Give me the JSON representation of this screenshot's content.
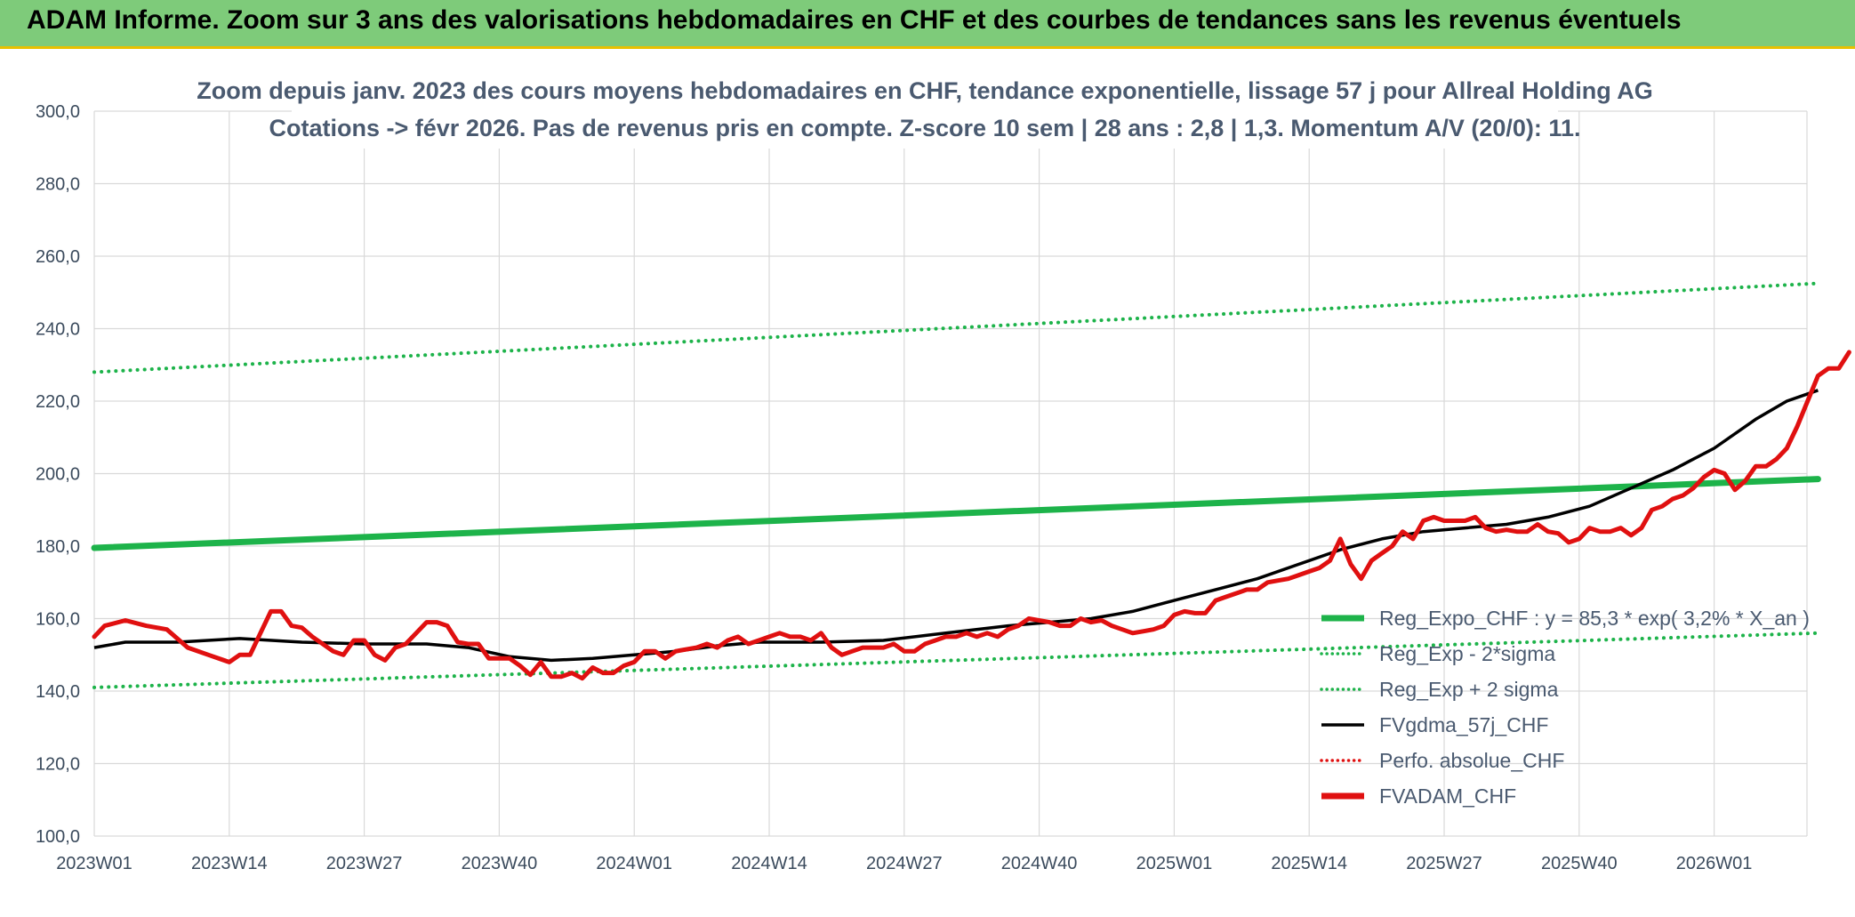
{
  "header": {
    "title": "ADAM Informe. Zoom sur 3 ans des valorisations hebdomadaires en CHF et des courbes de tendances sans les revenus éventuels"
  },
  "colors": {
    "header_bg": "#7ecb7a",
    "reg_expo": "#1db34a",
    "sigma_band": "#1db34a",
    "fvgdma": "#000000",
    "perfo": "#e01010",
    "fvadam": "#e01010"
  },
  "chart_data": {
    "type": "line",
    "title": "Zoom depuis janv. 2023 des cours moyens hebdomadaires en CHF, tendance exponentielle, lissage 57 j pour Allreal Holding AG",
    "subtitle": "Cotations -> févr 2026. Pas de revenus pris en compte. Z-score 10 sem | 28 ans : 2,8 | 1,3. Momentum A/V (20/0): 11.",
    "x_ticks": [
      "2023W01",
      "2023W14",
      "2023W27",
      "2023W40",
      "2024W01",
      "2024W14",
      "2024W27",
      "2024W40",
      "2025W01",
      "2025W14",
      "2025W27",
      "2025W40",
      "2026W01"
    ],
    "y_ticks": [
      "100,0",
      "120,0",
      "140,0",
      "160,0",
      "180,0",
      "200,0",
      "220,0",
      "240,0",
      "260,0",
      "280,0",
      "300,0"
    ],
    "ylim": [
      100,
      300
    ],
    "weeks_span": [
      0,
      166
    ],
    "grid": true,
    "legend_position": "right",
    "legend": [
      {
        "name": "Reg_Expo_CHF : y = 85,3 * exp( 3,2% *  X_an )",
        "style": "thick-solid",
        "color": "#1db34a"
      },
      {
        "name": "Reg_Exp - 2*sigma",
        "style": "dotted",
        "color": "#1db34a"
      },
      {
        "name": "Reg_Exp + 2 sigma",
        "style": "dotted",
        "color": "#1db34a"
      },
      {
        "name": "FVgdma_57j_CHF",
        "style": "solid",
        "color": "#000000"
      },
      {
        "name": "Perfo. absolue_CHF",
        "style": "dotted",
        "color": "#e01010"
      },
      {
        "name": "FVADAM_CHF",
        "style": "thick-solid",
        "color": "#e01010"
      }
    ],
    "series": [
      {
        "name": "Reg_Expo_CHF : y = 85,3 * exp( 3,2% *  X_an )",
        "key": "reg_expo",
        "points": [
          [
            0,
            179.5
          ],
          [
            166,
            198.5
          ]
        ]
      },
      {
        "name": "Reg_Exp - 2*sigma",
        "key": "reg_minus",
        "points": [
          [
            0,
            141
          ],
          [
            166,
            156
          ]
        ]
      },
      {
        "name": "Reg_Exp + 2 sigma",
        "key": "reg_plus",
        "points": [
          [
            0,
            228
          ],
          [
            166,
            252.5
          ]
        ]
      },
      {
        "name": "FVgdma_57j_CHF",
        "key": "fvgdma",
        "points": [
          [
            0,
            152
          ],
          [
            3,
            153.5
          ],
          [
            8,
            153.5
          ],
          [
            14,
            154.5
          ],
          [
            20,
            153.5
          ],
          [
            26,
            153
          ],
          [
            32,
            153
          ],
          [
            36,
            152
          ],
          [
            40,
            149.5
          ],
          [
            44,
            148.5
          ],
          [
            48,
            149
          ],
          [
            52,
            150
          ],
          [
            56,
            151
          ],
          [
            60,
            152.5
          ],
          [
            64,
            153.5
          ],
          [
            70,
            153.5
          ],
          [
            76,
            154
          ],
          [
            82,
            156
          ],
          [
            88,
            158
          ],
          [
            92,
            159
          ],
          [
            96,
            160
          ],
          [
            100,
            162
          ],
          [
            104,
            165
          ],
          [
            108,
            168
          ],
          [
            112,
            171
          ],
          [
            116,
            175
          ],
          [
            120,
            179
          ],
          [
            124,
            182
          ],
          [
            128,
            184
          ],
          [
            132,
            185
          ],
          [
            136,
            186
          ],
          [
            140,
            188
          ],
          [
            144,
            191
          ],
          [
            148,
            196
          ],
          [
            152,
            201
          ],
          [
            156,
            207
          ],
          [
            160,
            215
          ],
          [
            163,
            220
          ],
          [
            166,
            223
          ]
        ]
      },
      {
        "name": "FVADAM_CHF",
        "key": "fvadam",
        "points": [
          [
            0,
            155
          ],
          [
            1,
            158
          ],
          [
            3,
            159.5
          ],
          [
            5,
            158
          ],
          [
            7,
            157
          ],
          [
            9,
            152
          ],
          [
            11,
            150
          ],
          [
            13,
            148
          ],
          [
            14,
            150
          ],
          [
            15,
            150
          ],
          [
            17,
            162
          ],
          [
            18,
            162
          ],
          [
            19,
            158
          ],
          [
            20,
            157.5
          ],
          [
            21,
            155
          ],
          [
            22,
            153
          ],
          [
            23,
            151
          ],
          [
            24,
            150
          ],
          [
            25,
            154
          ],
          [
            26,
            154
          ],
          [
            27,
            150
          ],
          [
            28,
            148.5
          ],
          [
            29,
            152
          ],
          [
            30,
            153
          ],
          [
            31,
            156
          ],
          [
            32,
            159
          ],
          [
            33,
            159
          ],
          [
            34,
            158
          ],
          [
            35,
            153.5
          ],
          [
            36,
            153
          ],
          [
            37,
            153
          ],
          [
            38,
            149
          ],
          [
            40,
            149
          ],
          [
            41,
            147
          ],
          [
            42,
            144.5
          ],
          [
            43,
            148
          ],
          [
            44,
            144
          ],
          [
            45,
            144
          ],
          [
            46,
            145
          ],
          [
            47,
            143.5
          ],
          [
            48,
            146.5
          ],
          [
            49,
            145
          ],
          [
            50,
            145
          ],
          [
            51,
            147
          ],
          [
            52,
            148
          ],
          [
            53,
            151
          ],
          [
            54,
            151
          ],
          [
            55,
            149
          ],
          [
            56,
            151
          ],
          [
            58,
            152
          ],
          [
            59,
            153
          ],
          [
            60,
            152
          ],
          [
            61,
            154
          ],
          [
            62,
            155
          ],
          [
            63,
            153
          ],
          [
            64,
            154
          ],
          [
            65,
            155
          ],
          [
            66,
            156
          ],
          [
            67,
            155
          ],
          [
            68,
            155
          ],
          [
            69,
            154
          ],
          [
            70,
            156
          ],
          [
            71,
            152
          ],
          [
            72,
            150
          ],
          [
            73,
            151
          ],
          [
            74,
            152
          ],
          [
            76,
            152
          ],
          [
            77,
            153
          ],
          [
            78,
            151
          ],
          [
            79,
            151
          ],
          [
            80,
            153
          ],
          [
            81,
            154
          ],
          [
            82,
            155
          ],
          [
            83,
            155
          ],
          [
            84,
            156
          ],
          [
            85,
            155
          ],
          [
            86,
            156
          ],
          [
            87,
            155
          ],
          [
            88,
            157
          ],
          [
            89,
            158
          ],
          [
            90,
            160
          ],
          [
            92,
            159
          ],
          [
            93,
            158
          ],
          [
            94,
            158
          ],
          [
            95,
            160
          ],
          [
            96,
            159
          ],
          [
            97,
            159.5
          ],
          [
            98,
            158
          ],
          [
            99,
            157
          ],
          [
            100,
            156
          ],
          [
            101,
            156.5
          ],
          [
            102,
            157
          ],
          [
            103,
            158
          ],
          [
            104,
            161
          ],
          [
            105,
            162
          ],
          [
            106,
            161.5
          ],
          [
            107,
            161.5
          ],
          [
            108,
            165
          ],
          [
            109,
            166
          ],
          [
            110,
            167
          ],
          [
            111,
            168
          ],
          [
            112,
            168
          ],
          [
            113,
            170
          ],
          [
            114,
            170.5
          ],
          [
            115,
            171
          ],
          [
            116,
            172
          ],
          [
            117,
            173
          ],
          [
            118,
            174
          ],
          [
            119,
            176
          ],
          [
            120,
            182
          ],
          [
            121,
            175
          ],
          [
            122,
            171
          ],
          [
            123,
            176
          ],
          [
            124,
            178
          ],
          [
            125,
            180
          ],
          [
            126,
            184
          ],
          [
            127,
            182
          ],
          [
            128,
            187
          ],
          [
            129,
            188
          ],
          [
            130,
            187
          ],
          [
            131,
            187
          ],
          [
            132,
            187
          ],
          [
            133,
            188
          ],
          [
            134,
            185
          ],
          [
            135,
            184
          ],
          [
            136,
            184.5
          ],
          [
            137,
            184
          ],
          [
            138,
            184
          ],
          [
            139,
            186
          ],
          [
            140,
            184
          ],
          [
            141,
            183.5
          ],
          [
            142,
            181
          ],
          [
            143,
            182
          ],
          [
            144,
            185
          ],
          [
            145,
            184
          ],
          [
            146,
            184
          ],
          [
            147,
            185
          ],
          [
            148,
            183
          ],
          [
            149,
            185
          ],
          [
            150,
            190
          ],
          [
            151,
            191
          ],
          [
            152,
            193
          ],
          [
            153,
            194
          ],
          [
            154,
            196
          ],
          [
            155,
            199
          ],
          [
            156,
            201
          ],
          [
            157,
            200
          ],
          [
            158,
            195.5
          ],
          [
            159,
            198
          ],
          [
            160,
            202
          ],
          [
            161,
            202
          ],
          [
            162,
            204
          ],
          [
            163,
            207
          ],
          [
            164,
            213
          ],
          [
            165,
            220
          ],
          [
            166,
            227
          ],
          [
            167,
            229
          ],
          [
            168,
            229
          ],
          [
            169,
            233.5
          ]
        ]
      }
    ]
  }
}
